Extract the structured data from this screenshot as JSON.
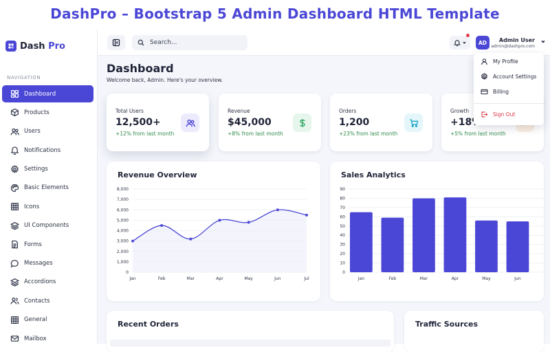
{
  "banner": {
    "title": "DashPro – Bootstrap 5 Admin Dashboard HTML Template"
  },
  "brand": {
    "name_main": "Dash",
    "name_accent": "Pro"
  },
  "sidebar": {
    "heading": "NAVIGATION",
    "items": [
      {
        "label": "Dashboard",
        "icon": "dashboard-icon",
        "active": true
      },
      {
        "label": "Products",
        "icon": "box-icon"
      },
      {
        "label": "Users",
        "icon": "users-icon"
      },
      {
        "label": "Notifications",
        "icon": "bell-icon"
      },
      {
        "label": "Settings",
        "icon": "gear-icon"
      },
      {
        "label": "Basic Elements",
        "icon": "palette-icon"
      },
      {
        "label": "Icons",
        "icon": "grid-icon"
      },
      {
        "label": "UI Components",
        "icon": "layers-icon"
      },
      {
        "label": "Forms",
        "icon": "file-icon"
      },
      {
        "label": "Messages",
        "icon": "chat-icon"
      },
      {
        "label": "Accordions",
        "icon": "stack-icon"
      },
      {
        "label": "Contacts",
        "icon": "contacts-icon"
      },
      {
        "label": "General",
        "icon": "grid-icon"
      },
      {
        "label": "Mailbox",
        "icon": "mail-icon"
      }
    ]
  },
  "topbar": {
    "search_placeholder": "Search...",
    "avatar_initials": "AD",
    "user_name": "Admin User",
    "user_email": "admin@dashpro.com"
  },
  "user_menu": {
    "items": [
      {
        "label": "My Profile",
        "icon": "user-icon"
      },
      {
        "label": "Account Settings",
        "icon": "gear-icon"
      },
      {
        "label": "Billing",
        "icon": "credit-card-icon"
      },
      {
        "label": "Sign Out",
        "icon": "sign-out-icon",
        "danger": true
      }
    ]
  },
  "page": {
    "title": "Dashboard",
    "subtitle": "Welcome back, Admin. Here's your overview."
  },
  "stats": [
    {
      "label": "Total Users",
      "value": "12,500+",
      "change": "+12% from last month",
      "icon": "users-icon",
      "color": "#4b47d6",
      "bg": "#eceafd"
    },
    {
      "label": "Revenue",
      "value": "$45,000",
      "change": "+8% from last month",
      "icon": "dollar-icon",
      "color": "#2fa862",
      "bg": "#e6f6ec"
    },
    {
      "label": "Orders",
      "value": "1,200",
      "change": "+23% from last month",
      "icon": "cart-icon",
      "color": "#1fa9c9",
      "bg": "#e5f6fa"
    },
    {
      "label": "Growth",
      "value": "+18%",
      "change": "+5% from last month",
      "icon": "trend-icon",
      "color": "#e89a4a",
      "bg": "#fcefe2"
    }
  ],
  "panels": {
    "revenue_title": "Revenue Overview",
    "sales_title": "Sales Analytics",
    "orders_title": "Recent Orders",
    "traffic_title": "Traffic Sources"
  },
  "chart_data": [
    {
      "type": "line",
      "title": "Revenue Overview",
      "categories": [
        "Jan",
        "Feb",
        "Mar",
        "Apr",
        "May",
        "Jun",
        "Jul"
      ],
      "values": [
        3000,
        4500,
        3200,
        5000,
        4800,
        6000,
        5500
      ],
      "yticks": [
        "0",
        "1,000",
        "2,000",
        "3,000",
        "4,000",
        "5,000",
        "6,000",
        "7,000",
        "8,000"
      ],
      "ylim": [
        0,
        8000
      ],
      "color": "#4b47d6",
      "grid": true
    },
    {
      "type": "bar",
      "title": "Sales Analytics",
      "categories": [
        "Jan",
        "Feb",
        "Mar",
        "Apr",
        "May",
        "Jun"
      ],
      "values": [
        65,
        59,
        80,
        81,
        56,
        55
      ],
      "yticks": [
        "0",
        "10",
        "20",
        "30",
        "40",
        "50",
        "60",
        "70",
        "80",
        "90"
      ],
      "ylim": [
        0,
        90
      ],
      "color": "#4b47d6",
      "grid": true
    }
  ]
}
